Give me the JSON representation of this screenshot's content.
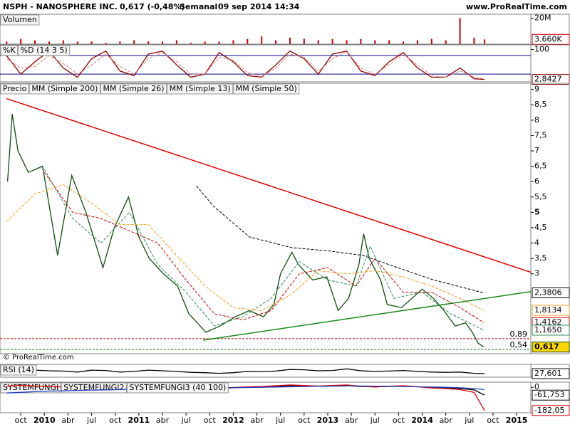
{
  "header": {
    "title": "NSPH - NANOSPHERE INC.",
    "quote": "0,617 (-0,48%)",
    "period": "Semanal",
    "datetime": "09 sep 2014 14:34",
    "site": "www.ProRealTime.com",
    "copyright": "© ProRealTime.com"
  },
  "chart_data": [
    {
      "type": "bar",
      "xlim": [
        2009.53,
        2015.15
      ],
      "ylim": [
        0,
        23000000
      ],
      "yticks": [
        {
          "value": 20000000,
          "label": "20M"
        }
      ],
      "x": [
        2009.6,
        2009.75,
        2009.9,
        2010.05,
        2010.2,
        2010.35,
        2010.5,
        2010.65,
        2010.8,
        2010.95,
        2011.1,
        2011.25,
        2011.4,
        2011.55,
        2011.7,
        2011.85,
        2012.0,
        2012.15,
        2012.3,
        2012.45,
        2012.6,
        2012.75,
        2012.9,
        2013.05,
        2013.2,
        2013.35,
        2013.5,
        2013.65,
        2013.8,
        2013.95,
        2014.1,
        2014.25,
        2014.4,
        2014.55,
        2014.66
      ],
      "series": [
        {
          "name": "Volumen",
          "color": "#cc0000",
          "last_label": "3.660K",
          "values": [
            2000000,
            4000000,
            3000000,
            2000000,
            3000000,
            2000000,
            2000000,
            1000000,
            2000000,
            3000000,
            2000000,
            2000000,
            3000000,
            1000000,
            2000000,
            2000000,
            3000000,
            4000000,
            6000000,
            3000000,
            5000000,
            4000000,
            3000000,
            4000000,
            3000000,
            4000000,
            3000000,
            3000000,
            2000000,
            3000000,
            4000000,
            3000000,
            20000000,
            5000000,
            3660000
          ]
        }
      ]
    },
    {
      "type": "line",
      "xlim": [
        2009.53,
        2015.15
      ],
      "ylim": [
        -5,
        115
      ],
      "yticks": [
        100
      ],
      "levels": [
        {
          "value": 80,
          "color": "#00008b"
        },
        {
          "value": 20,
          "color": "#00008b"
        }
      ],
      "x": [
        2009.6,
        2009.75,
        2009.9,
        2010.05,
        2010.2,
        2010.35,
        2010.5,
        2010.65,
        2010.8,
        2010.95,
        2011.1,
        2011.25,
        2011.4,
        2011.55,
        2011.7,
        2011.85,
        2012.0,
        2012.15,
        2012.3,
        2012.45,
        2012.6,
        2012.75,
        2012.9,
        2013.05,
        2013.2,
        2013.35,
        2013.5,
        2013.65,
        2013.8,
        2013.95,
        2014.1,
        2014.25,
        2014.4,
        2014.55,
        2014.66
      ],
      "series": [
        {
          "name": "%K",
          "color": "#8b0000",
          "last_label": "2,8427",
          "values": [
            80,
            20,
            60,
            95,
            40,
            10,
            70,
            95,
            30,
            15,
            85,
            95,
            50,
            10,
            20,
            90,
            60,
            15,
            10,
            50,
            95,
            70,
            20,
            85,
            95,
            30,
            15,
            60,
            90,
            40,
            10,
            10,
            40,
            5,
            2.8427
          ]
        },
        {
          "name": "%D (14 3 5)",
          "color": "#e08080",
          "dashed": true,
          "values": [
            70,
            40,
            45,
            80,
            55,
            20,
            50,
            85,
            45,
            20,
            70,
            90,
            60,
            20,
            20,
            75,
            65,
            25,
            12,
            40,
            85,
            75,
            30,
            70,
            92,
            40,
            20,
            50,
            85,
            50,
            15,
            10,
            30,
            10,
            5
          ]
        }
      ]
    },
    {
      "type": "line",
      "xlim": [
        2009.53,
        2015.15
      ],
      "ylim": [
        0.4,
        9.2
      ],
      "yticks": [
        9,
        {
          "value": 8.5,
          "label": "8,5"
        },
        8,
        {
          "value": 7.5,
          "label": "7,5"
        },
        7,
        {
          "value": 6.5,
          "label": "6,5"
        },
        6,
        {
          "value": 5.5,
          "label": "5,5"
        },
        5,
        {
          "value": 4.5,
          "label": "4,5"
        },
        4,
        {
          "value": 3.5,
          "label": "3,5"
        },
        3
      ],
      "levels": [
        {
          "value": 0.89,
          "label": "0,89",
          "color": "#c00000"
        },
        {
          "value": 0.54,
          "label": "0,54",
          "color": "#008000"
        }
      ],
      "trendlines": [
        {
          "color": "#e00000",
          "x": [
            2009.6,
            2015.15
          ],
          "values": [
            8.7,
            3.05
          ]
        },
        {
          "color": "#1a8a1a",
          "x": [
            2011.68,
            2015.15
          ],
          "values": [
            0.84,
            2.42
          ]
        }
      ],
      "series": [
        {
          "name": "Precio",
          "color": "#0b4d0b",
          "last_label": "0,617",
          "x": [
            2009.61,
            2009.66,
            2009.72,
            2009.83,
            2009.98,
            2010.14,
            2010.29,
            2010.44,
            2010.62,
            2010.74,
            2010.89,
            2011.0,
            2011.11,
            2011.26,
            2011.41,
            2011.53,
            2011.71,
            2011.86,
            2012.02,
            2012.17,
            2012.32,
            2012.43,
            2012.5,
            2012.62,
            2012.69,
            2012.84,
            2012.99,
            2013.11,
            2013.22,
            2013.33,
            2013.38,
            2013.44,
            2013.56,
            2013.63,
            2013.78,
            2013.89,
            2014.0,
            2014.12,
            2014.23,
            2014.35,
            2014.46,
            2014.53,
            2014.59,
            2014.65
          ],
          "values": [
            6.0,
            8.2,
            7.0,
            6.3,
            6.5,
            3.6,
            6.2,
            5.0,
            3.2,
            4.5,
            5.5,
            4.2,
            3.5,
            3.0,
            2.6,
            1.7,
            1.1,
            1.3,
            1.6,
            1.8,
            1.6,
            2.0,
            3.0,
            3.7,
            3.3,
            2.8,
            2.9,
            1.8,
            2.2,
            3.3,
            4.3,
            3.5,
            2.8,
            2.0,
            1.9,
            2.2,
            2.5,
            2.2,
            1.8,
            1.3,
            1.4,
            1.1,
            0.75,
            0.617
          ]
        },
        {
          "name": "MM (Simple 200)",
          "color": "#000000",
          "dashed": true,
          "last_label": "2,3806",
          "x": [
            2011.61,
            2011.79,
            2012.17,
            2012.62,
            2012.99,
            2013.37,
            2013.74,
            2014.12,
            2014.65
          ],
          "values": [
            5.86,
            5.2,
            4.2,
            3.85,
            3.75,
            3.6,
            3.2,
            2.8,
            2.3806
          ]
        },
        {
          "name": "MM (Simple 26)",
          "color": "#cc0000",
          "dashed": true,
          "last_label": "1,4162",
          "x": [
            2010.0,
            2010.3,
            2010.6,
            2010.9,
            2011.2,
            2011.5,
            2011.8,
            2012.1,
            2012.4,
            2012.7,
            2013.0,
            2013.3,
            2013.5,
            2013.8,
            2014.1,
            2014.4,
            2014.65
          ],
          "values": [
            6.3,
            5.0,
            4.8,
            4.4,
            4.0,
            2.8,
            1.7,
            1.5,
            1.8,
            3.0,
            3.2,
            2.6,
            3.5,
            2.4,
            2.4,
            1.9,
            1.4162
          ]
        },
        {
          "name": "MM (Simple 13)",
          "color": "#2e8b57",
          "dashed": true,
          "last_label": "1,1650",
          "x": [
            2010.0,
            2010.3,
            2010.6,
            2010.9,
            2011.2,
            2011.5,
            2011.8,
            2012.1,
            2012.4,
            2012.7,
            2013.0,
            2013.3,
            2013.45,
            2013.7,
            2014.0,
            2014.3,
            2014.5,
            2014.65
          ],
          "values": [
            6.4,
            4.8,
            4.0,
            5.0,
            3.3,
            2.4,
            1.3,
            1.6,
            2.2,
            3.4,
            2.8,
            2.6,
            3.9,
            2.2,
            2.4,
            1.7,
            1.4,
            1.165
          ]
        },
        {
          "name": "MM (Simple 50)",
          "color": "#f0a020",
          "dashed": true,
          "last_label": "1,8134",
          "x": [
            2009.6,
            2009.9,
            2010.2,
            2010.5,
            2010.8,
            2011.1,
            2011.4,
            2011.7,
            2012.0,
            2012.3,
            2012.6,
            2012.9,
            2013.2,
            2013.5,
            2013.8,
            2014.1,
            2014.4,
            2014.65
          ],
          "values": [
            4.7,
            5.6,
            5.9,
            5.3,
            4.6,
            4.6,
            3.6,
            2.6,
            1.9,
            1.8,
            2.3,
            3.1,
            3.0,
            3.1,
            2.9,
            2.6,
            2.2,
            1.8134
          ]
        }
      ]
    },
    {
      "type": "line",
      "xlim": [
        2009.53,
        2015.15
      ],
      "ylim": [
        0,
        100
      ],
      "x": [
        2009.6,
        2009.75,
        2009.9,
        2010.05,
        2010.2,
        2010.35,
        2010.5,
        2010.65,
        2010.8,
        2010.95,
        2011.1,
        2011.25,
        2011.4,
        2011.55,
        2011.7,
        2011.85,
        2012.0,
        2012.15,
        2012.3,
        2012.45,
        2012.6,
        2012.75,
        2012.9,
        2013.05,
        2013.2,
        2013.35,
        2013.5,
        2013.65,
        2013.8,
        2013.95,
        2014.1,
        2014.25,
        2014.4,
        2014.55,
        2014.66
      ],
      "series": [
        {
          "name": "RSI (14)",
          "color": "#000000",
          "last_label": "27,601",
          "values": [
            55,
            70,
            55,
            50,
            48,
            40,
            55,
            52,
            40,
            45,
            55,
            50,
            45,
            38,
            35,
            30,
            35,
            45,
            42,
            48,
            60,
            58,
            50,
            52,
            65,
            50,
            45,
            48,
            52,
            45,
            40,
            38,
            40,
            30,
            27.601
          ]
        }
      ]
    },
    {
      "type": "line",
      "xlim": [
        2009.53,
        2015.15
      ],
      "ylim": [
        -200,
        40
      ],
      "yticks": [
        0
      ],
      "x": [
        2009.6,
        2009.75,
        2009.9,
        2010.05,
        2010.2,
        2010.35,
        2010.5,
        2010.65,
        2010.8,
        2010.95,
        2011.1,
        2011.25,
        2011.4,
        2011.55,
        2011.7,
        2011.85,
        2012.0,
        2012.15,
        2012.3,
        2012.45,
        2012.6,
        2012.75,
        2012.9,
        2013.05,
        2013.2,
        2013.35,
        2013.5,
        2013.65,
        2013.8,
        2013.95,
        2014.1,
        2014.25,
        2014.4,
        2014.55,
        2014.66
      ],
      "series": [
        {
          "name": "SYSTEMFUNGI",
          "color": "#000000",
          "last_label": "-61,753",
          "values": [
            5,
            10,
            8,
            5,
            3,
            0,
            4,
            6,
            2,
            3,
            5,
            6,
            4,
            0,
            -4,
            -6,
            -2,
            2,
            5,
            8,
            12,
            10,
            8,
            10,
            12,
            6,
            4,
            6,
            8,
            4,
            0,
            -4,
            -10,
            -20,
            -61.753
          ]
        },
        {
          "name": "SYSTEMFUNGI2",
          "color": "#e00000",
          "last_label": "-182,05",
          "values": [
            8,
            15,
            10,
            6,
            2,
            -5,
            6,
            8,
            0,
            2,
            8,
            10,
            5,
            -4,
            -8,
            -10,
            -4,
            3,
            6,
            12,
            18,
            14,
            10,
            14,
            18,
            8,
            2,
            8,
            12,
            5,
            -6,
            -10,
            -18,
            -40,
            -182.05
          ]
        },
        {
          "name": "SYSTEMFUNGI3 (40 100)",
          "color": "#1f3fbf",
          "values": [
            -45,
            -40,
            -35,
            -30,
            -28,
            -25,
            -22,
            -20,
            -18,
            -16,
            -14,
            -12,
            -10,
            -9,
            -8,
            -6,
            -4,
            -2,
            0,
            2,
            4,
            6,
            8,
            9,
            10,
            10,
            9,
            8,
            6,
            4,
            2,
            0,
            -4,
            -10,
            -18
          ]
        }
      ]
    }
  ],
  "xticks": [
    {
      "value": 2009.75,
      "label": "oct"
    },
    {
      "value": 2010.0,
      "label": "2010"
    },
    {
      "value": 2010.25,
      "label": "abr"
    },
    {
      "value": 2010.5,
      "label": "jul"
    },
    {
      "value": 2010.75,
      "label": "oct"
    },
    {
      "value": 2011.0,
      "label": "2011"
    },
    {
      "value": 2011.25,
      "label": "abr"
    },
    {
      "value": 2011.5,
      "label": "jul"
    },
    {
      "value": 2011.75,
      "label": "oct"
    },
    {
      "value": 2012.0,
      "label": "2012"
    },
    {
      "value": 2012.25,
      "label": "abr"
    },
    {
      "value": 2012.5,
      "label": "jul"
    },
    {
      "value": 2012.75,
      "label": "oct"
    },
    {
      "value": 2013.0,
      "label": "2013"
    },
    {
      "value": 2013.25,
      "label": "abr"
    },
    {
      "value": 2013.5,
      "label": "jul"
    },
    {
      "value": 2013.75,
      "label": "oct"
    },
    {
      "value": 2014.0,
      "label": "2014"
    },
    {
      "value": 2014.25,
      "label": "abr"
    },
    {
      "value": 2014.5,
      "label": "jul"
    },
    {
      "value": 2014.75,
      "label": "oct"
    },
    {
      "value": 2015.0,
      "label": "2015"
    }
  ]
}
